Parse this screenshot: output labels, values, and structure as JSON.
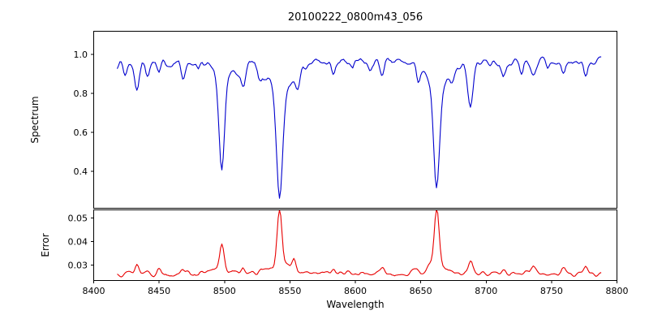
{
  "title": "20100222_0800m43_056",
  "chart_data": {
    "type": "line",
    "title": "20100222_0800m43_056",
    "xlabel": "Wavelength",
    "legend": "none",
    "grid": false,
    "xlim": [
      8400,
      8800
    ],
    "x_ticks": [
      8400,
      8450,
      8500,
      8550,
      8600,
      8650,
      8700,
      8750,
      8800
    ],
    "x_tick_labels": [
      "8400",
      "8450",
      "8500",
      "8550",
      "8600",
      "8650",
      "8700",
      "8750",
      "8800"
    ],
    "x_range_data": [
      8418,
      8788
    ],
    "x_step": 1,
    "panels": [
      {
        "name": "spectrum",
        "ylabel": "Spectrum",
        "color": "#0000cd",
        "ylim": [
          0.21,
          1.12
        ],
        "y_ticks": [
          0.4,
          0.6,
          0.8,
          1.0
        ],
        "y_tick_labels": [
          "0.4",
          "0.6",
          "0.8",
          "1.0"
        ],
        "continuum": 0.96,
        "noise_amplitude": 0.045,
        "seed": 7,
        "absorption_lines": [
          {
            "center": 8498.0,
            "core_depth": 0.46,
            "core_width": 2.0,
            "wing_depth": 0.1,
            "wing_width": 7,
            "min_value": 0.4
          },
          {
            "center": 8542.1,
            "core_depth": 0.56,
            "core_width": 2.4,
            "wing_depth": 0.14,
            "wing_width": 10,
            "min_value": 0.26
          },
          {
            "center": 8662.1,
            "core_depth": 0.55,
            "core_width": 2.2,
            "wing_depth": 0.12,
            "wing_width": 9,
            "min_value": 0.29
          }
        ],
        "minor_dips": [
          {
            "center": 8424,
            "depth": 0.06,
            "width": 1.5
          },
          {
            "center": 8433,
            "depth": 0.13,
            "width": 1.8
          },
          {
            "center": 8441,
            "depth": 0.05,
            "width": 1.5
          },
          {
            "center": 8450,
            "depth": 0.07,
            "width": 1.5
          },
          {
            "center": 8468,
            "depth": 0.08,
            "width": 1.5
          },
          {
            "center": 8480,
            "depth": 0.05,
            "width": 1.2
          },
          {
            "center": 8514,
            "depth": 0.12,
            "width": 2.0
          },
          {
            "center": 8527,
            "depth": 0.06,
            "width": 1.5
          },
          {
            "center": 8556,
            "depth": 0.05,
            "width": 1.5
          },
          {
            "center": 8583,
            "depth": 0.07,
            "width": 1.5
          },
          {
            "center": 8598,
            "depth": 0.05,
            "width": 1.2
          },
          {
            "center": 8611,
            "depth": 0.05,
            "width": 1.2
          },
          {
            "center": 8621,
            "depth": 0.07,
            "width": 1.5
          },
          {
            "center": 8648,
            "depth": 0.05,
            "width": 1.2
          },
          {
            "center": 8674,
            "depth": 0.06,
            "width": 1.5
          },
          {
            "center": 8688,
            "depth": 0.22,
            "width": 2.0
          },
          {
            "center": 8713,
            "depth": 0.07,
            "width": 1.5
          },
          {
            "center": 8727,
            "depth": 0.05,
            "width": 1.2
          },
          {
            "center": 8736,
            "depth": 0.06,
            "width": 1.5
          },
          {
            "center": 8747,
            "depth": 0.05,
            "width": 1.2
          },
          {
            "center": 8759,
            "depth": 0.06,
            "width": 1.5
          },
          {
            "center": 8776,
            "depth": 0.08,
            "width": 1.5
          }
        ]
      },
      {
        "name": "error",
        "ylabel": "Error",
        "color": "#e80000",
        "ylim": [
          0.0235,
          0.0535
        ],
        "y_ticks": [
          0.03,
          0.04,
          0.05
        ],
        "y_tick_labels": [
          "0.03",
          "0.04",
          "0.05"
        ],
        "baseline": 0.0265,
        "noise_amplitude": 0.002,
        "seed": 13,
        "spikes": [
          {
            "center": 8498.0,
            "height": 0.011,
            "width": 1.6
          },
          {
            "center": 8498.0,
            "height": 0.002,
            "width": 5
          },
          {
            "center": 8542.1,
            "height": 0.0245,
            "width": 1.8
          },
          {
            "center": 8542.1,
            "height": 0.004,
            "width": 6
          },
          {
            "center": 8662.1,
            "height": 0.0235,
            "width": 1.8
          },
          {
            "center": 8662.1,
            "height": 0.004,
            "width": 6
          },
          {
            "center": 8424,
            "height": 0.0015,
            "width": 1.5
          },
          {
            "center": 8433,
            "height": 0.004,
            "width": 1.5
          },
          {
            "center": 8441,
            "height": 0.0015,
            "width": 1.5
          },
          {
            "center": 8450,
            "height": 0.002,
            "width": 1.5
          },
          {
            "center": 8468,
            "height": 0.0025,
            "width": 1.5
          },
          {
            "center": 8514,
            "height": 0.003,
            "width": 1.5
          },
          {
            "center": 8527,
            "height": 0.0015,
            "width": 1.5
          },
          {
            "center": 8553,
            "height": 0.006,
            "width": 1.5
          },
          {
            "center": 8583,
            "height": 0.002,
            "width": 1.5
          },
          {
            "center": 8621,
            "height": 0.002,
            "width": 1.5
          },
          {
            "center": 8648,
            "height": 0.0015,
            "width": 1.5
          },
          {
            "center": 8688,
            "height": 0.006,
            "width": 1.6
          },
          {
            "center": 8713,
            "height": 0.0025,
            "width": 1.5
          },
          {
            "center": 8736,
            "height": 0.003,
            "width": 1.5
          },
          {
            "center": 8759,
            "height": 0.002,
            "width": 1.5
          },
          {
            "center": 8776,
            "height": 0.003,
            "width": 1.5
          }
        ]
      }
    ]
  }
}
